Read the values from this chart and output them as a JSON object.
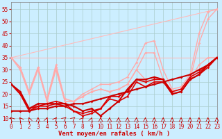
{
  "title": "",
  "xlabel": "Vent moyen/en rafales ( km/h )",
  "background_color": "#cceeff",
  "grid_color": "#aacccc",
  "x_ticks": [
    0,
    1,
    2,
    3,
    4,
    5,
    6,
    7,
    8,
    9,
    10,
    11,
    12,
    13,
    14,
    15,
    16,
    17,
    18,
    19,
    20,
    21,
    22,
    23
  ],
  "y_ticks": [
    10,
    15,
    20,
    25,
    30,
    35,
    40,
    45,
    50,
    55
  ],
  "xlim": [
    0,
    23
  ],
  "ylim": [
    9,
    58
  ],
  "lines": [
    {
      "x": [
        0,
        1,
        2,
        3,
        4,
        5,
        6,
        7,
        8,
        9,
        10,
        11,
        12,
        13,
        14,
        15,
        16,
        17,
        18,
        19,
        20,
        21,
        22,
        23
      ],
      "y": [
        24,
        20,
        13,
        15,
        15,
        16,
        15,
        13,
        11,
        12,
        14,
        18,
        17,
        19,
        25,
        23,
        25,
        25,
        20,
        21,
        26,
        28,
        31,
        35
      ],
      "color": "#dd0000",
      "lw": 1.2,
      "marker": "D",
      "ms": 1.8,
      "zorder": 5
    },
    {
      "x": [
        0,
        1,
        2,
        3,
        4,
        5,
        6,
        7,
        8,
        9,
        10,
        11,
        12,
        13,
        14,
        15,
        16,
        17,
        18,
        19,
        20,
        21,
        22,
        23
      ],
      "y": [
        24,
        20,
        14,
        15,
        16,
        17,
        16,
        13,
        12,
        13,
        14,
        19,
        19,
        21,
        26,
        25,
        26,
        26,
        21,
        22,
        27,
        29,
        32,
        35
      ],
      "color": "#dd0000",
      "lw": 1.2,
      "marker": "D",
      "ms": 1.8,
      "zorder": 5
    },
    {
      "x": [
        0,
        1,
        2,
        3,
        4,
        5,
        6,
        7,
        8,
        9,
        10,
        11,
        12,
        13,
        14,
        15,
        16,
        17,
        18,
        19,
        20,
        21,
        22,
        23
      ],
      "y": [
        24,
        21,
        14,
        16,
        16,
        16,
        16,
        15,
        13,
        14,
        11,
        14,
        17,
        22,
        26,
        26,
        27,
        26,
        20,
        21,
        26,
        28,
        32,
        35
      ],
      "color": "#cc0000",
      "lw": 1.5,
      "marker": "D",
      "ms": 2.0,
      "zorder": 6
    },
    {
      "x": [
        0,
        1,
        2,
        3,
        4,
        5,
        6,
        7,
        8,
        9,
        10,
        11,
        12,
        13,
        14,
        15,
        16,
        17,
        18,
        19,
        20,
        21,
        22,
        23
      ],
      "y": [
        13,
        13,
        13,
        14,
        14,
        15,
        15,
        16,
        16,
        17,
        18,
        19,
        20,
        21,
        22,
        23,
        24,
        25,
        26,
        27,
        28,
        30,
        32,
        35
      ],
      "color": "#cc0000",
      "lw": 1.5,
      "marker": "D",
      "ms": 2.0,
      "zorder": 6
    },
    {
      "x": [
        0,
        1,
        2,
        3,
        4,
        5,
        6,
        7,
        8,
        9,
        10,
        11,
        12,
        13,
        14,
        15,
        16,
        17,
        18,
        19,
        20,
        21,
        22,
        23
      ],
      "y": [
        35,
        31,
        21,
        31,
        17,
        31,
        17,
        17,
        19,
        21,
        22,
        21,
        22,
        24,
        30,
        26,
        27,
        26,
        21,
        22,
        26,
        32,
        35,
        35
      ],
      "color": "#ffaaaa",
      "lw": 1.0,
      "marker": "D",
      "ms": 2.0,
      "zorder": 3
    },
    {
      "x": [
        0,
        1,
        2,
        3,
        4,
        5,
        6,
        7,
        8,
        9,
        10,
        11,
        12,
        13,
        14,
        15,
        16,
        17,
        18,
        19,
        20,
        21,
        22,
        23
      ],
      "y": [
        35,
        31,
        21,
        31,
        18,
        32,
        18,
        17,
        19,
        21,
        22,
        21,
        22,
        24,
        30,
        37,
        37,
        26,
        21,
        22,
        26,
        41,
        51,
        55
      ],
      "color": "#ffaaaa",
      "lw": 1.0,
      "marker": "D",
      "ms": 2.0,
      "zorder": 3
    },
    {
      "x": [
        0,
        1,
        2,
        3,
        4,
        5,
        6,
        7,
        8,
        9,
        10,
        11,
        12,
        13,
        14,
        15,
        16,
        17,
        18,
        19,
        20,
        21,
        22,
        23
      ],
      "y": [
        35,
        30,
        20,
        30,
        17,
        30,
        17,
        17,
        20,
        22,
        24,
        24,
        25,
        27,
        33,
        41,
        42,
        30,
        22,
        23,
        28,
        45,
        54,
        55
      ],
      "color": "#ffaaaa",
      "lw": 1.0,
      "marker": "D",
      "ms": 2.0,
      "zorder": 3
    },
    {
      "x": [
        0,
        23
      ],
      "y": [
        35,
        55
      ],
      "color": "#ffbbbb",
      "lw": 0.8,
      "marker": "none",
      "ms": 0,
      "zorder": 2
    },
    {
      "x": [
        0,
        23
      ],
      "y": [
        35,
        35
      ],
      "color": "#ffbbbb",
      "lw": 0.8,
      "marker": "none",
      "ms": 0,
      "zorder": 2
    }
  ],
  "xlabel_fontsize": 6.5,
  "tick_fontsize": 5.5
}
